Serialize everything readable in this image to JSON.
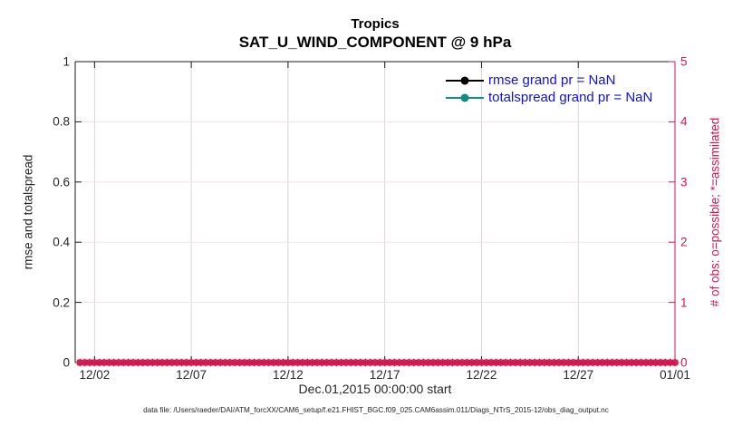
{
  "title": {
    "line1": "Tropics",
    "line2": "SAT_U_WIND_COMPONENT @ 9 hPa"
  },
  "left_axis": {
    "label": "rmse and totalspread",
    "ticks": [
      "0",
      "0.2",
      "0.4",
      "0.6",
      "0.8",
      "1"
    ],
    "color": "#262626"
  },
  "right_axis": {
    "label": "# of obs: o=possible; *=assimilated",
    "ticks": [
      "0",
      "1",
      "2",
      "3",
      "4",
      "5"
    ],
    "color": "#D31550"
  },
  "x_axis": {
    "label": "Dec.01,2015 00:00:00 start",
    "ticks": [
      "12/02",
      "12/07",
      "12/12",
      "12/17",
      "12/22",
      "12/27",
      "01/01"
    ]
  },
  "legend": [
    {
      "label": "rmse grand pr = NaN",
      "color": "#000000"
    },
    {
      "label": "totalspread grand pr = NaN",
      "color": "#0E8E86"
    }
  ],
  "legend_text_color": "#1010E0",
  "footer": "data file: /Users/raeder/DAI/ATM_forcXX/CAM6_setup/f.e21.FHIST_BGC.f09_025.CAM6assim.011/Diags_NTrS_2015-12/obs_diag_output.nc",
  "chart_data": {
    "type": "line",
    "title": "Tropics",
    "subtitle": "SAT_U_WIND_COMPONENT @ 9 hPa",
    "xlabel": "Dec.01,2015 00:00:00 start",
    "ylabel_left": "rmse and totalspread",
    "ylabel_right": "# of obs: o=possible; *=assimilated",
    "xlim_days": [
      0,
      31
    ],
    "x_tick_days": [
      1,
      6,
      11,
      16,
      21,
      26,
      31
    ],
    "x_tick_labels": [
      "12/02",
      "12/07",
      "12/12",
      "12/17",
      "12/22",
      "12/27",
      "01/01"
    ],
    "ylim_left": [
      0,
      1
    ],
    "yticks_left": [
      0,
      0.2,
      0.4,
      0.6,
      0.8,
      1
    ],
    "ylim_right": [
      0,
      5
    ],
    "yticks_right": [
      0,
      1,
      2,
      3,
      4,
      5
    ],
    "grid": true,
    "grid_vertical_color": "#d2d2d2",
    "grid_horizontal_color": "#f8dde7",
    "legend_position": "top-right-inside",
    "series": [
      {
        "name": "rmse grand pr = NaN",
        "axis": "left",
        "color": "#000000",
        "marker": "dot",
        "values": "NaN (not plotted)"
      },
      {
        "name": "totalspread grand pr = NaN",
        "axis": "left",
        "color": "#0E8E86",
        "marker": "dot",
        "values": "NaN (not plotted)"
      },
      {
        "name": "observations possible (o)",
        "axis": "right",
        "color": "#D31550",
        "marker": "o",
        "n_points": 124,
        "x_start_day": 0.25,
        "x_step_days": 0.25,
        "constant_value": 0
      },
      {
        "name": "observations assimilated (*)",
        "axis": "right",
        "color": "#D31550",
        "marker": "*",
        "n_points": 124,
        "x_start_day": 0.25,
        "x_step_days": 0.25,
        "constant_value": 0
      }
    ]
  }
}
